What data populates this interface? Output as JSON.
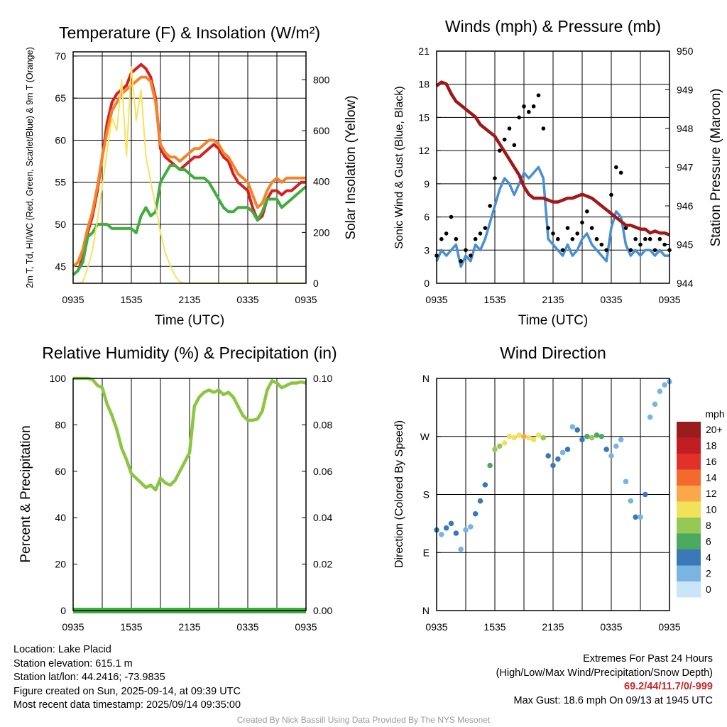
{
  "colors": {
    "red": "#d62020",
    "orange": "#f5832a",
    "green": "#3fae3f",
    "scarlet_blue": "#3f86c6",
    "yellow": "#f8e35a",
    "blue": "#4a90d0",
    "black": "#000000",
    "maroon": "#a01818",
    "rh_green": "#8cc63f",
    "precip_green": "#3cae3c"
  },
  "chart_data": [
    {
      "type": "line",
      "title": "Temperature (F) & Insolation (W/m²)",
      "xlabel": "Time (UTC)",
      "ylabel": "2m T, Td, HI/WC (Red, Green, Scarlet/Blue) & 9m T (Orange)",
      "y2label": "Solar Insolation (Yellow)",
      "x_ticks": [
        "0935",
        "1535",
        "2135",
        "0335",
        "0935"
      ],
      "ylim": [
        43,
        70.5
      ],
      "y_ticks": [
        "45",
        "50",
        "55",
        "60",
        "65",
        "70"
      ],
      "y2lim": [
        0,
        910
      ],
      "y2_ticks": [
        "0",
        "200",
        "400",
        "600",
        "800"
      ],
      "x_hours": [
        0,
        0.5,
        1,
        1.5,
        2,
        2.5,
        3,
        3.5,
        4,
        4.5,
        5,
        5.5,
        6,
        6.5,
        7,
        7.5,
        8,
        8.5,
        9,
        9.5,
        10,
        10.5,
        11,
        11.5,
        12,
        12.5,
        13,
        13.5,
        14,
        14.5,
        15,
        15.5,
        16,
        16.5,
        17,
        17.5,
        18,
        18.5,
        19,
        19.5,
        20,
        20.5,
        21,
        21.5,
        22,
        22.5,
        23,
        23.5,
        24
      ],
      "series": [
        {
          "name": "2m T",
          "color_key": "red",
          "values": [
            44,
            44.5,
            46,
            49,
            51,
            54,
            58,
            62,
            64.5,
            65.5,
            66,
            66.5,
            68,
            68.5,
            69,
            68.5,
            67.5,
            65,
            59,
            58,
            57.5,
            57,
            56.5,
            57,
            57.5,
            58,
            58,
            58.5,
            59,
            59.5,
            59,
            58,
            57.5,
            56,
            55,
            54.5,
            54,
            52,
            50.5,
            51,
            53,
            54,
            54,
            53.5,
            54,
            54,
            54.5,
            55,
            55
          ]
        },
        {
          "name": "9m T",
          "color_key": "orange",
          "values": [
            45,
            45.5,
            47,
            49.5,
            51.5,
            54.5,
            58,
            61,
            63.5,
            64.5,
            65.5,
            66,
            66.5,
            67,
            67.5,
            67.5,
            67,
            64.5,
            59.5,
            58.5,
            58,
            58,
            57.5,
            58,
            58.5,
            59,
            59,
            59.5,
            60,
            60,
            59.5,
            58.5,
            58,
            57,
            56,
            55.5,
            55,
            53.5,
            52,
            52.5,
            54,
            55,
            55.5,
            55,
            55.5,
            55.5,
            55.5,
            55.5,
            55.5
          ]
        },
        {
          "name": "Td",
          "color_key": "green",
          "values": [
            44,
            44.5,
            45.5,
            48.5,
            49,
            50,
            50,
            50,
            49.5,
            49.5,
            49.5,
            49.5,
            49.5,
            49,
            51,
            52,
            51,
            51.5,
            55,
            56,
            57,
            57,
            56.5,
            56.5,
            56,
            55.5,
            55.5,
            55.5,
            55,
            54,
            53,
            52,
            51.5,
            51.5,
            52,
            52,
            52,
            51.5,
            50.5,
            51.5,
            53,
            53,
            53,
            52,
            52.5,
            53,
            53.5,
            54,
            54.5
          ]
        },
        {
          "name": "Insolation",
          "axis": "y2",
          "color_key": "yellow",
          "values": [
            0,
            0,
            5,
            60,
            130,
            250,
            380,
            520,
            650,
            600,
            800,
            500,
            850,
            640,
            760,
            500,
            400,
            300,
            200,
            120,
            70,
            30,
            5,
            0,
            0,
            0,
            0,
            0,
            0,
            0,
            0,
            0,
            0,
            0,
            0,
            0,
            0,
            0,
            0,
            0,
            0,
            0,
            0,
            0,
            0,
            0,
            0,
            0,
            0
          ]
        }
      ]
    },
    {
      "type": "line",
      "title": "Winds (mph) & Pressure (mb)",
      "xlabel": "Time (UTC)",
      "ylabel": "Sonic Wind & Gust (Blue, Black)",
      "y2label": "Station Pressure (Maroon)",
      "x_ticks": [
        "0935",
        "1535",
        "2135",
        "0335",
        "0935"
      ],
      "ylim": [
        0,
        21
      ],
      "y_ticks": [
        "0",
        "3",
        "6",
        "9",
        "12",
        "15",
        "18",
        "21"
      ],
      "y2lim": [
        944,
        950
      ],
      "y2_ticks": [
        "944",
        "945",
        "946",
        "947",
        "948",
        "949",
        "950"
      ],
      "x_hours": [
        0,
        0.5,
        1,
        1.5,
        2,
        2.5,
        3,
        3.5,
        4,
        4.5,
        5,
        5.5,
        6,
        6.5,
        7,
        7.5,
        8,
        8.5,
        9,
        9.5,
        10,
        10.5,
        11,
        11.5,
        12,
        12.5,
        13,
        13.5,
        14,
        14.5,
        15,
        15.5,
        16,
        16.5,
        17,
        17.5,
        18,
        18.5,
        19,
        19.5,
        20,
        20.5,
        21,
        21.5,
        22,
        22.5,
        23,
        23.5,
        24
      ],
      "series": [
        {
          "name": "Sonic Wind",
          "color_key": "blue",
          "values": [
            2,
            3,
            2.5,
            3,
            3.5,
            1.5,
            2.5,
            2,
            3.5,
            3,
            4,
            5.5,
            7,
            8.5,
            9.5,
            9,
            8,
            9,
            10,
            9.5,
            10,
            10.5,
            9.5,
            4,
            3.5,
            3,
            2.5,
            3.5,
            2.5,
            3,
            4,
            4.5,
            3.5,
            3,
            2.5,
            2,
            5,
            6.5,
            6,
            3.5,
            2.5,
            3,
            2.5,
            3,
            3,
            2.5,
            3,
            2.5,
            2.5
          ]
        },
        {
          "name": "Gust",
          "color_key": "black",
          "values": [
            2.5,
            4,
            4.5,
            6,
            4,
            2,
            3,
            2.5,
            4,
            4.5,
            5,
            7,
            9.5,
            12,
            13,
            14,
            12.5,
            15,
            16,
            15.5,
            16,
            17,
            14,
            5,
            4.5,
            4,
            3,
            5,
            4,
            4.5,
            5.5,
            6.5,
            5,
            4,
            3.5,
            3,
            8,
            10.5,
            10,
            5,
            3,
            4,
            3.5,
            4,
            4,
            3,
            4,
            3.5,
            3
          ]
        },
        {
          "name": "Pressure",
          "axis": "y2",
          "color_key": "maroon",
          "values": [
            949.1,
            949.2,
            949.15,
            948.9,
            948.7,
            948.6,
            948.5,
            948.4,
            948.3,
            948.1,
            948,
            947.9,
            947.8,
            947.6,
            947.4,
            947.2,
            947,
            946.8,
            946.5,
            946.3,
            946.2,
            946.2,
            946.2,
            946.15,
            946.1,
            946.1,
            946.15,
            946.2,
            946.2,
            946.25,
            946.3,
            946.25,
            946.2,
            946.1,
            946,
            945.9,
            945.8,
            945.7,
            945.6,
            945.5,
            945.5,
            945.45,
            945.4,
            945.4,
            945.3,
            945.35,
            945.3,
            945.3,
            945.25
          ]
        }
      ]
    },
    {
      "type": "line",
      "title": "Relative Humidity (%) & Precipitation (in)",
      "ylabel": "Percent & Precipitation",
      "x_ticks": [
        "0935",
        "1535",
        "2135",
        "0335",
        "0935"
      ],
      "ylim": [
        0,
        100
      ],
      "y_ticks": [
        "0",
        "20",
        "40",
        "60",
        "80",
        "100"
      ],
      "y2lim": [
        0,
        0.1
      ],
      "y2_ticks": [
        "0.00",
        "0.02",
        "0.04",
        "0.06",
        "0.08",
        "0.10"
      ],
      "x_hours": [
        0,
        0.5,
        1,
        1.5,
        2,
        2.5,
        3,
        3.5,
        4,
        4.5,
        5,
        5.5,
        6,
        6.5,
        7,
        7.5,
        8,
        8.5,
        9,
        9.5,
        10,
        10.5,
        11,
        11.5,
        12,
        12.5,
        13,
        13.5,
        14,
        14.5,
        15,
        15.5,
        16,
        16.5,
        17,
        17.5,
        18,
        18.5,
        19,
        19.5,
        20,
        20.5,
        21,
        21.5,
        22,
        22.5,
        23,
        23.5,
        24
      ],
      "series": [
        {
          "name": "RH",
          "color_key": "rh_green",
          "values": [
            100,
            100,
            100,
            100,
            99.5,
            97,
            96,
            89,
            84,
            78,
            70,
            65,
            59,
            57,
            55,
            53,
            54,
            52,
            57,
            55,
            54,
            56,
            60,
            64,
            68,
            88,
            92,
            94,
            95,
            94,
            95,
            93,
            94,
            92,
            88,
            84,
            82,
            82,
            82.5,
            86,
            95,
            99,
            98,
            96,
            97,
            98,
            98,
            98.5,
            98
          ]
        },
        {
          "name": "Precipitation",
          "axis": "y2",
          "color_key": "precip_green",
          "values": [
            0,
            0,
            0,
            0,
            0,
            0,
            0,
            0,
            0,
            0,
            0,
            0,
            0,
            0,
            0,
            0,
            0,
            0,
            0,
            0,
            0,
            0,
            0,
            0,
            0,
            0,
            0,
            0,
            0,
            0,
            0,
            0,
            0,
            0,
            0,
            0,
            0,
            0,
            0,
            0,
            0,
            0,
            0,
            0,
            0,
            0,
            0,
            0,
            0
          ]
        }
      ]
    },
    {
      "type": "scatter",
      "title": "Wind Direction",
      "ylabel": "Direction (Colored By Speed)",
      "x_ticks": [
        "0935",
        "1535",
        "2135",
        "0335",
        "0935"
      ],
      "y_ticks": [
        "N",
        "E",
        "S",
        "W",
        "N"
      ],
      "ylim": [
        0,
        360
      ],
      "legend": {
        "title": "mph",
        "placement": "right",
        "labels": [
          "20+",
          "18",
          "16",
          "14",
          "12",
          "10",
          "8",
          "6",
          "4",
          "2",
          "0"
        ],
        "colors": [
          "#9b1c1c",
          "#c01e23",
          "#e03228",
          "#f26a2c",
          "#fba84a",
          "#f2e25a",
          "#94c955",
          "#4aa860",
          "#3a78b8",
          "#7ab4e2",
          "#c8e6f8"
        ]
      },
      "x_hours": [
        0,
        0.5,
        1,
        1.5,
        2,
        2.5,
        3,
        3.5,
        4,
        4.5,
        5,
        5.5,
        6,
        6.5,
        7,
        7.5,
        8,
        8.5,
        9,
        9.5,
        10,
        10.5,
        11,
        11.5,
        12,
        12.5,
        13,
        13.5,
        14,
        14.5,
        15,
        15.5,
        16,
        16.5,
        17,
        17.5,
        18,
        18.5,
        19,
        19.5,
        20,
        20.5,
        21,
        21.5,
        22,
        22.5,
        23,
        23.5,
        24
      ],
      "series": [
        {
          "name": "Direction",
          "values": [
            125,
            118,
            128,
            135,
            120,
            95,
            125,
            130,
            150,
            170,
            195,
            225,
            250,
            255,
            260,
            270,
            268,
            272,
            270,
            268,
            265,
            272,
            268,
            240,
            225,
            235,
            245,
            250,
            285,
            280,
            265,
            270,
            268,
            272,
            270,
            250,
            240,
            255,
            265,
            200,
            170,
            145,
            145,
            180,
            300,
            320,
            340,
            350,
            355
          ]
        },
        {
          "name": "Speed",
          "values": [
            3,
            2.5,
            3,
            3.5,
            3,
            1.5,
            2.5,
            2,
            3.5,
            3,
            4,
            5.5,
            7,
            8.5,
            9.5,
            9,
            10,
            10.5,
            11,
            10,
            9,
            10.5,
            8,
            4,
            3.5,
            3,
            2.5,
            3.5,
            2.5,
            3,
            4,
            6.5,
            7,
            6.5,
            6,
            3,
            2,
            1.5,
            1.5,
            1.5,
            1.5,
            3,
            2.5,
            3,
            2.5,
            2.5,
            1.5,
            1.5,
            1.5
          ]
        }
      ]
    }
  ],
  "info_left": {
    "location": "Location: Lake Placid",
    "elevation": "Station elevation: 615.1 m",
    "latlon": "Station lat/lon: 44.2416; -73.9835",
    "created": "Figure created on Sun, 2025-09-14, at 09:39 UTC",
    "recent": "Most recent data timestamp: 2025/09/14 09:35:00"
  },
  "info_right": {
    "title": "Extremes For Past 24 Hours",
    "subtitle": "(High/Low/Max Wind/Precipitation/Snow Depth)",
    "values": "69.2/44/11.7/0/-999",
    "gust": "Max Gust: 18.6 mph On 09/13 at 1945 UTC"
  },
  "credit": "Created By Nick Bassill Using Data Provided By The NYS Mesonet"
}
